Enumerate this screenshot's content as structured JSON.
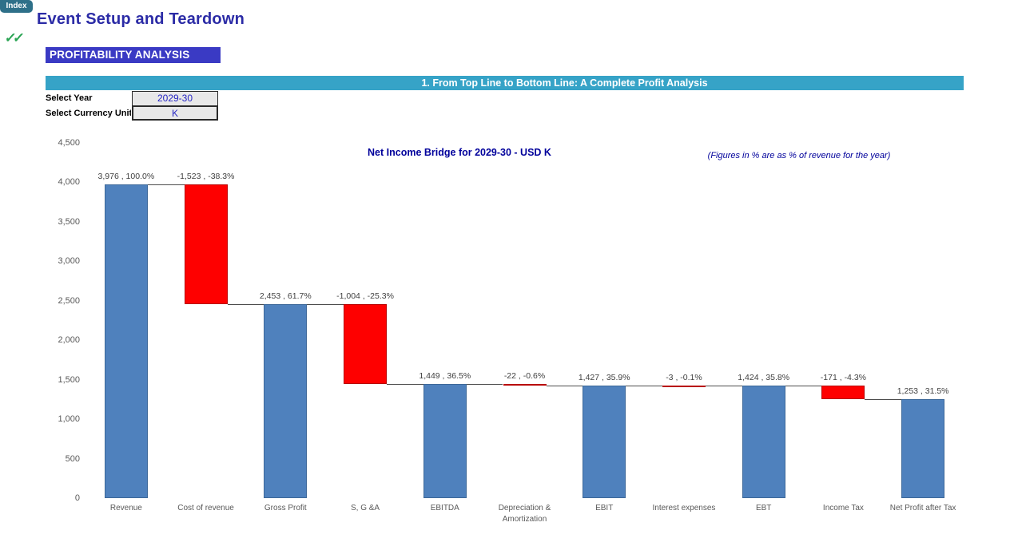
{
  "page": {
    "index_button": "Index",
    "checkmarks": "✓✓",
    "title": "Event Setup and Teardown",
    "section_label": "PROFITABILITY ANALYSIS",
    "banner": "1. From Top Line to Bottom Line: A Complete Profit Analysis"
  },
  "controls": {
    "year_label": "Select Year",
    "year_value": "2029-30",
    "currency_label": "Select Currency Unit",
    "currency_value": "K"
  },
  "colors": {
    "accent_teal": "#36a3c7",
    "royal_blue": "#3a3ac4",
    "title_blue": "#2b2ba6",
    "chart_text_blue": "#00009b",
    "index_teal": "#2e7089",
    "check_green": "#28a352",
    "bar_blue": "#4f81bd",
    "bar_blue_border": "#3d6899",
    "bar_red": "#fe0000",
    "bar_red_border": "#b80000",
    "axis_gray": "#595959",
    "data_label_gray": "#3f3f3f"
  },
  "chart_data": {
    "type": "waterfall",
    "title": "Net Income Bridge for 2029-30 - USD K",
    "note": "(Figures in % are as % of revenue for the year)",
    "ylim": [
      0,
      4500
    ],
    "ytick_step": 500,
    "yticks": [
      "0",
      "500",
      "1,000",
      "1,500",
      "2,000",
      "2,500",
      "3,000",
      "3,500",
      "4,000",
      "4,500"
    ],
    "grid": false,
    "legend": false,
    "bars": [
      {
        "category": "Revenue",
        "value": 3976,
        "kind": "total",
        "label": "3,976 , 100.0%"
      },
      {
        "category": "Cost of revenue",
        "value": -1523,
        "kind": "delta",
        "label": "-1,523 , -38.3%"
      },
      {
        "category": "Gross Profit",
        "value": 2453,
        "kind": "total",
        "label": "2,453 , 61.7%"
      },
      {
        "category": "S, G &A",
        "value": -1004,
        "kind": "delta",
        "label": "-1,004 , -25.3%"
      },
      {
        "category": "EBITDA",
        "value": 1449,
        "kind": "total",
        "label": "1,449 , 36.5%"
      },
      {
        "category": "Depreciation & Amortization",
        "value": -22,
        "kind": "delta",
        "label": "-22 , -0.6%"
      },
      {
        "category": "EBIT",
        "value": 1427,
        "kind": "total",
        "label": "1,427 , 35.9%"
      },
      {
        "category": "Interest expenses",
        "value": -3,
        "kind": "delta",
        "label": "-3 , -0.1%"
      },
      {
        "category": "EBT",
        "value": 1424,
        "kind": "total",
        "label": "1,424 , 35.8%"
      },
      {
        "category": "Income Tax",
        "value": -171,
        "kind": "delta",
        "label": "-171 , -4.3%"
      },
      {
        "category": "Net Profit after Tax",
        "value": 1253,
        "kind": "total",
        "label": "1,253 , 31.5%"
      }
    ]
  }
}
